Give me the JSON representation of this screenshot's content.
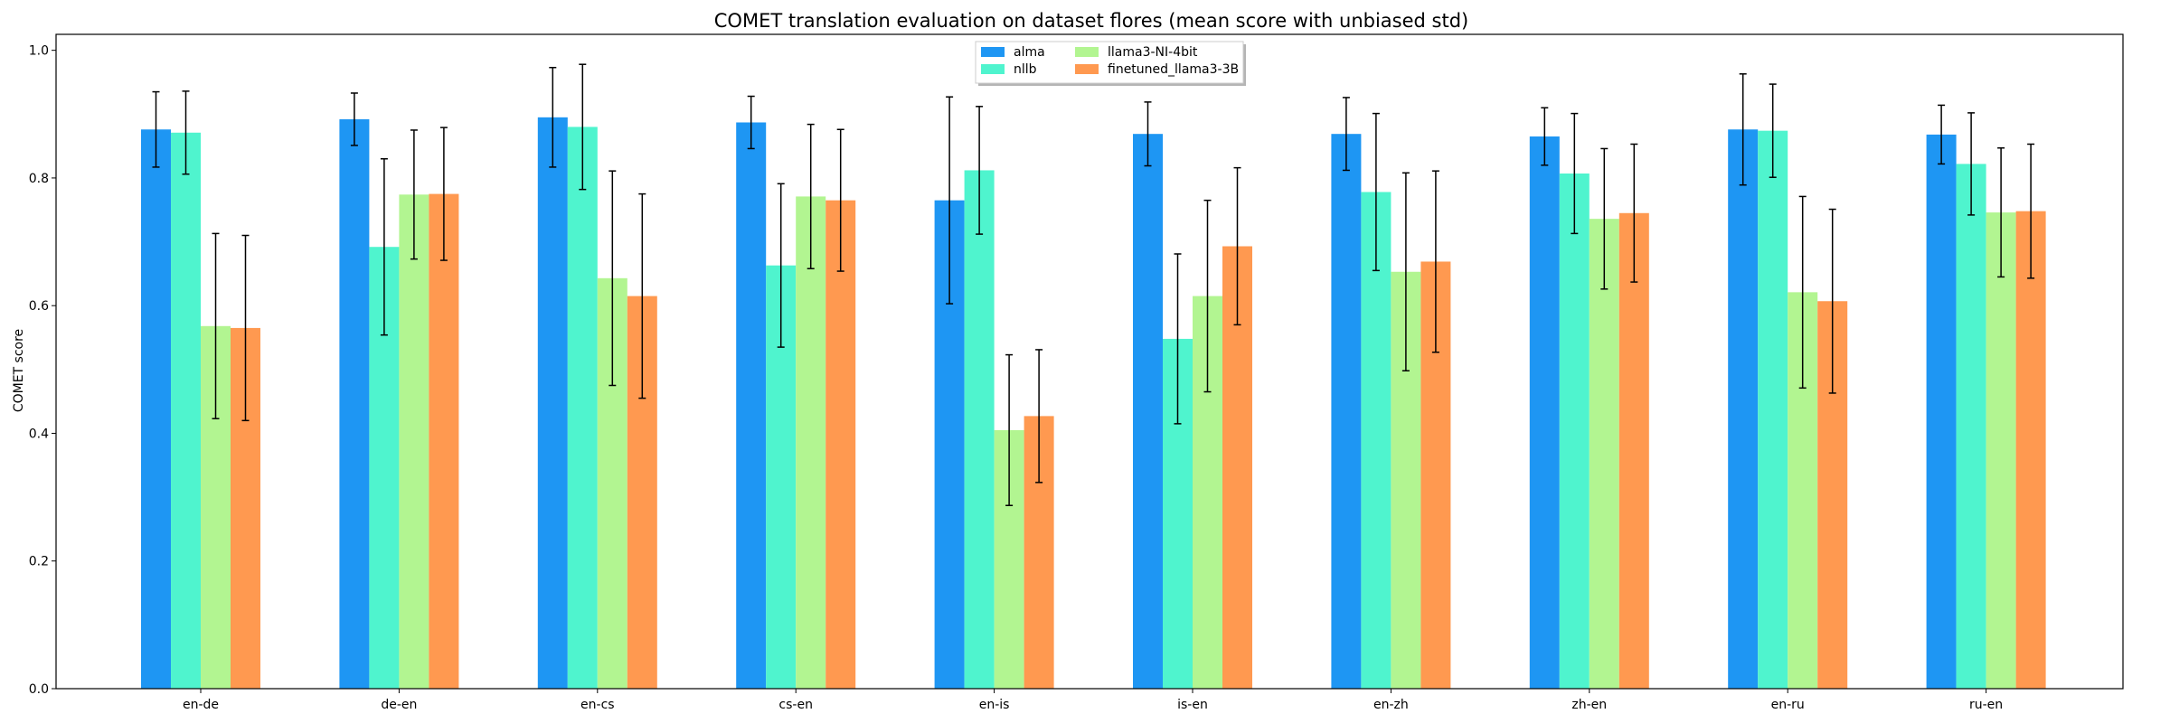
{
  "chart_data": {
    "type": "bar",
    "title": "COMET translation evaluation on dataset flores (mean score with unbiased std)",
    "xlabel": "",
    "ylabel": "COMET score",
    "ylim": [
      0,
      1.025
    ],
    "yticks": [
      "0.0",
      "0.2",
      "0.4",
      "0.6",
      "0.8",
      "1.0"
    ],
    "grid": false,
    "legend": {
      "placement": "top-center",
      "columns": 2
    },
    "categories": [
      "en-de",
      "de-en",
      "en-cs",
      "cs-en",
      "en-is",
      "is-en",
      "en-zh",
      "zh-en",
      "en-ru",
      "ru-en"
    ],
    "series": [
      {
        "name": "alma",
        "color": "#1e96f3",
        "values": [
          0.876,
          0.892,
          0.895,
          0.887,
          0.765,
          0.869,
          0.869,
          0.865,
          0.876,
          0.868
        ],
        "std": [
          0.059,
          0.041,
          0.078,
          0.041,
          0.162,
          0.05,
          0.057,
          0.045,
          0.087,
          0.046
        ]
      },
      {
        "name": "nllb",
        "color": "#4ff4ce",
        "values": [
          0.871,
          0.692,
          0.88,
          0.663,
          0.812,
          0.548,
          0.778,
          0.807,
          0.874,
          0.822
        ],
        "std": [
          0.065,
          0.138,
          0.098,
          0.128,
          0.1,
          0.133,
          0.123,
          0.094,
          0.073,
          0.08
        ]
      },
      {
        "name": "llama3-NI-4bit",
        "color": "#b2f591",
        "values": [
          0.568,
          0.774,
          0.643,
          0.771,
          0.405,
          0.615,
          0.653,
          0.736,
          0.621,
          0.746
        ],
        "std": [
          0.145,
          0.101,
          0.168,
          0.113,
          0.118,
          0.15,
          0.155,
          0.11,
          0.15,
          0.101
        ]
      },
      {
        "name": "finetuned_llama3-3B",
        "color": "#ff9950",
        "values": [
          0.565,
          0.775,
          0.615,
          0.765,
          0.427,
          0.693,
          0.669,
          0.745,
          0.607,
          0.748
        ],
        "std": [
          0.145,
          0.104,
          0.16,
          0.111,
          0.104,
          0.123,
          0.142,
          0.108,
          0.144,
          0.105
        ]
      }
    ]
  }
}
